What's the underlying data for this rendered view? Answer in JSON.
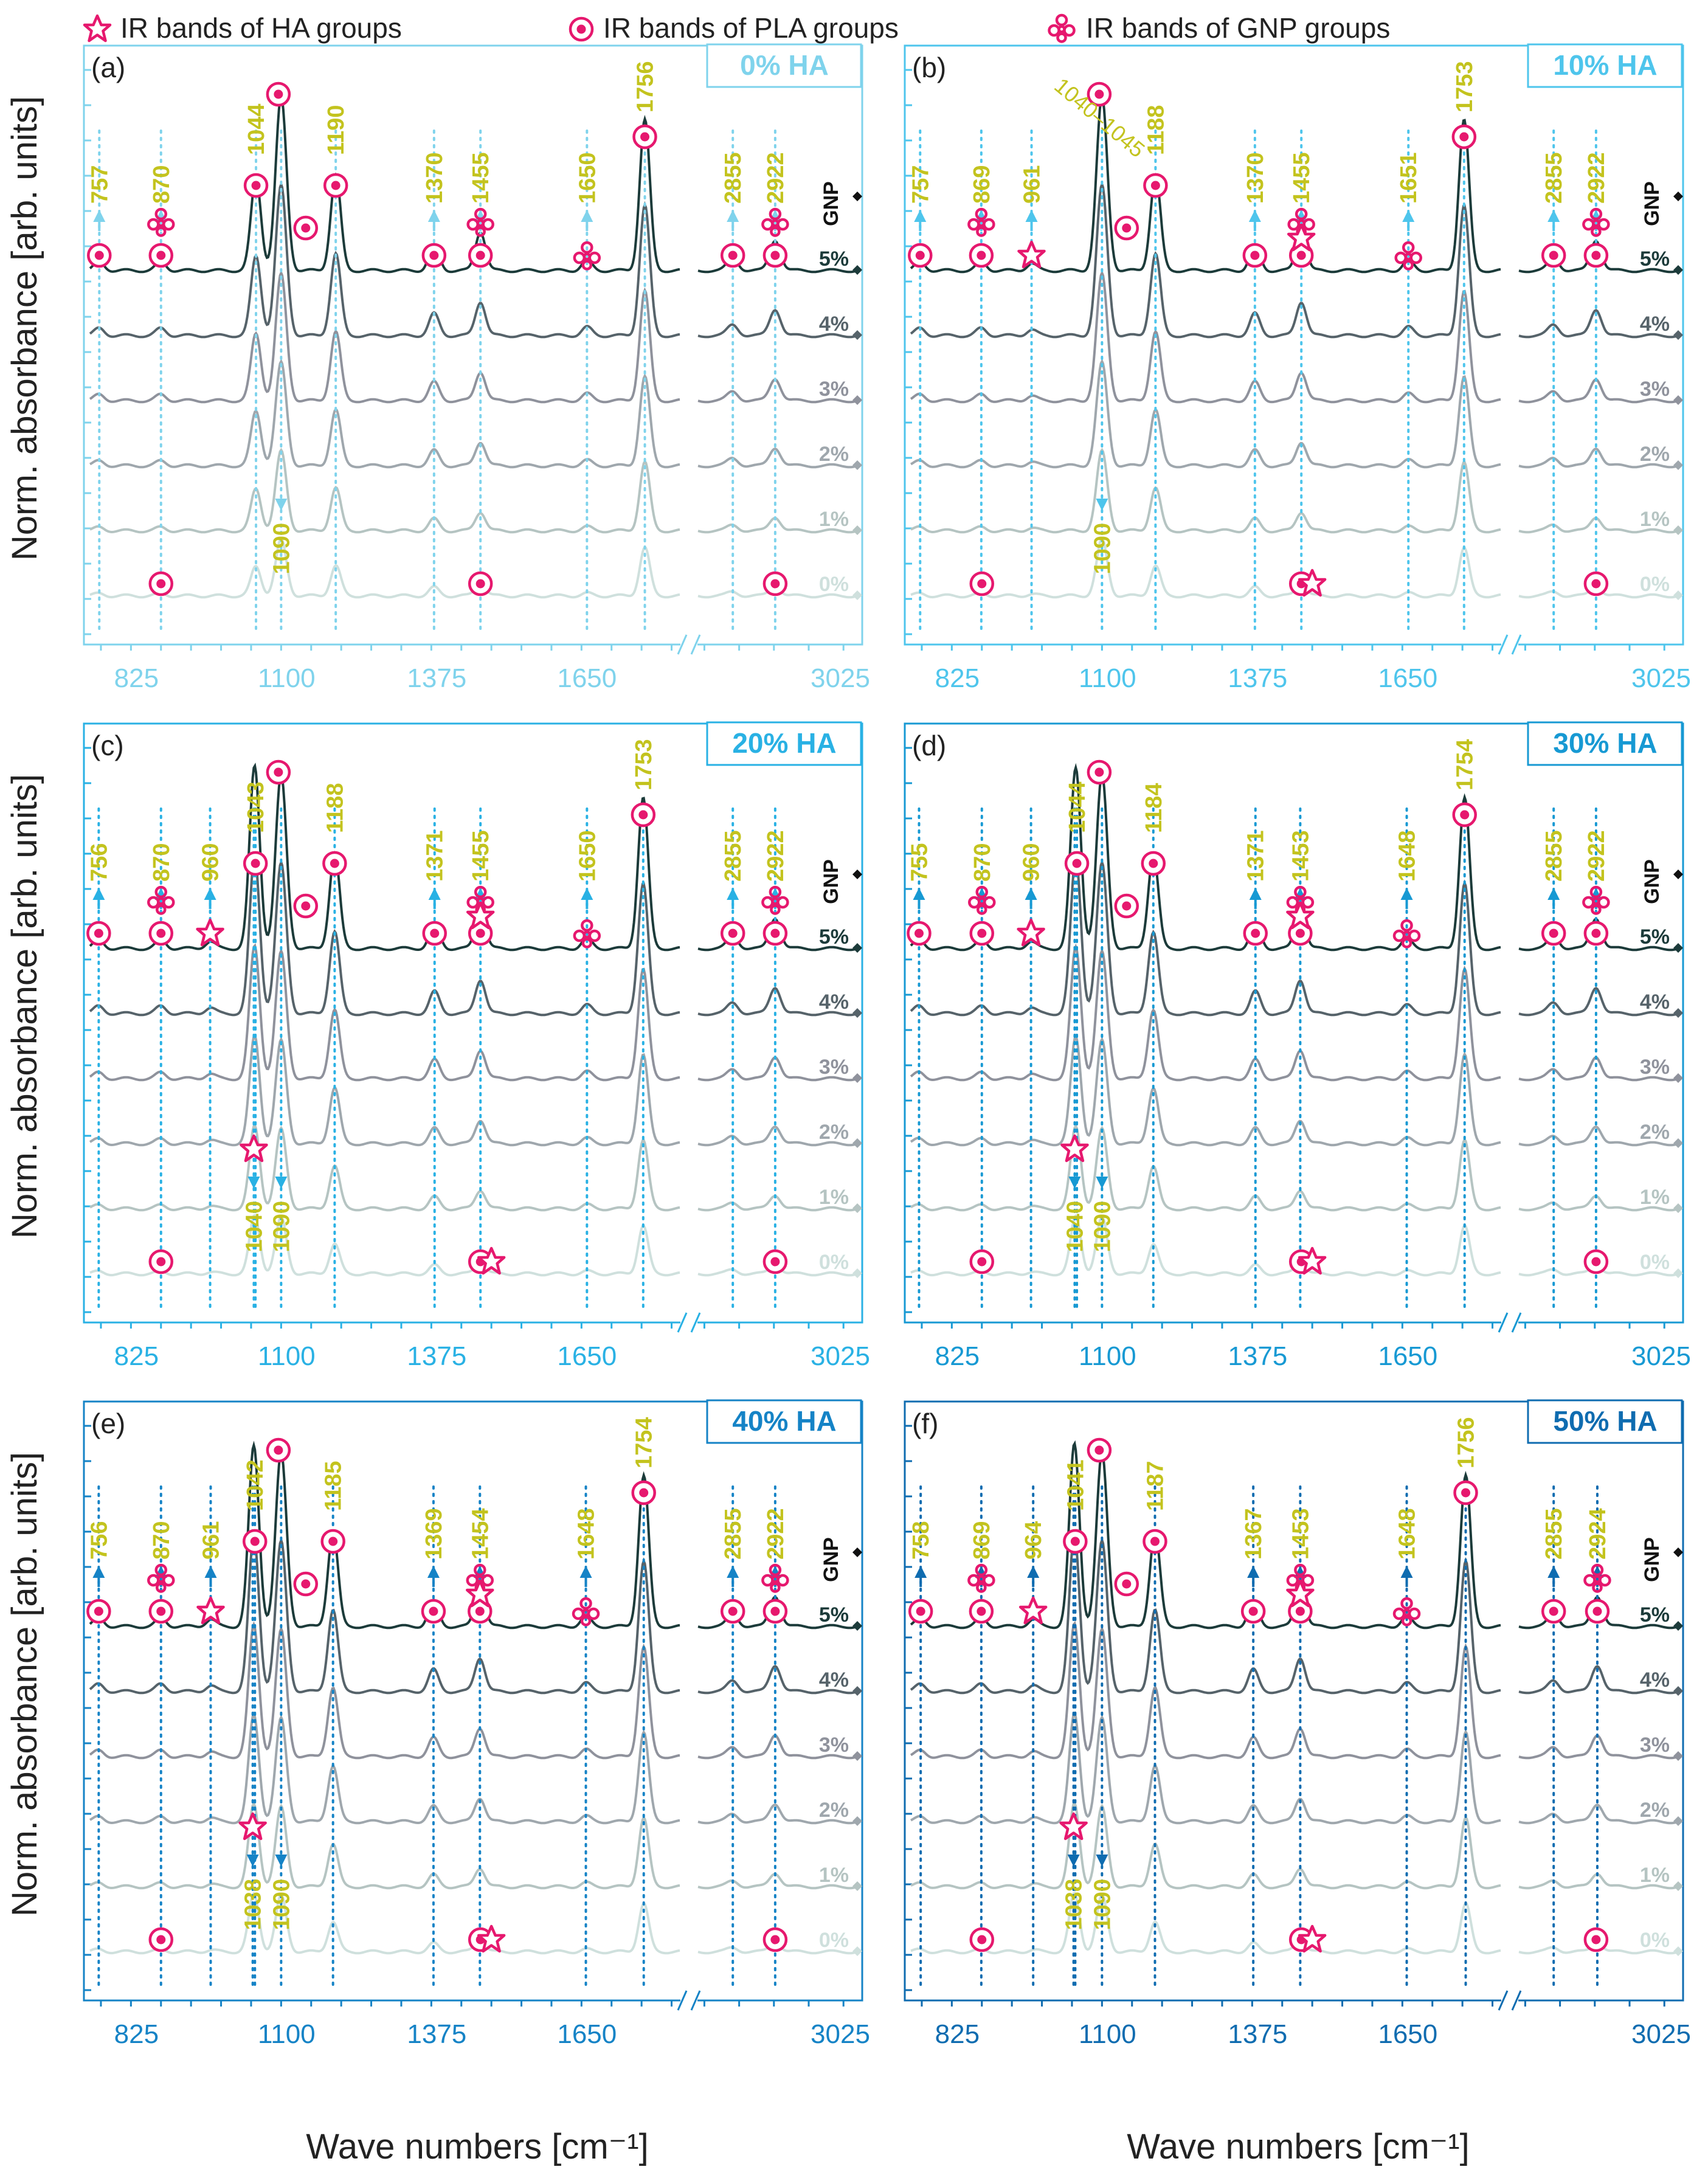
{
  "legend": {
    "ha_label": "IR bands of HA groups",
    "pla_label": "IR bands of PLA groups",
    "gnp_label": "IR bands of GNP groups"
  },
  "axes": {
    "ylabel": "Norm. absorbance [arb. units]",
    "xlabel": "Wave numbers [cm⁻¹]",
    "xticks_left": [
      "825",
      "1100",
      "1375",
      "1650"
    ],
    "xticks_right": [
      "3025"
    ],
    "xlim_left": [
      740,
      1820
    ],
    "xlim_right": [
      2800,
      3050
    ],
    "series_labels": [
      "0%",
      "1%",
      "2%",
      "3%",
      "4%",
      "5%"
    ],
    "gnp_label": "GNP"
  },
  "colors": {
    "marker": "#e6186e",
    "label": "#c3c31e",
    "series": [
      "#cfe0dd",
      "#b5c4c2",
      "#9fa7ad",
      "#8f929c",
      "#56636a",
      "#1c3b3a"
    ],
    "frames": [
      "#7fd3ec",
      "#4ec5ec",
      "#29b1e4",
      "#1799d3",
      "#1583c6",
      "#0f6cb0"
    ]
  },
  "chart_data": [
    {
      "type": "line",
      "panel": "(a)",
      "title": "0% HA",
      "peaks": [
        "757",
        "870",
        "1044",
        "1190",
        "1370",
        "1455",
        "1650",
        "1756",
        "2855",
        "2922",
        "1090"
      ],
      "peak_positions": [
        757,
        870,
        1044,
        1190,
        1370,
        1455,
        1650,
        1756,
        2855,
        2922,
        1090
      ],
      "extra_label": ""
    },
    {
      "type": "line",
      "panel": "(b)",
      "title": "10% HA",
      "peaks": [
        "757",
        "869",
        "961",
        "1188",
        "1370",
        "1455",
        "1651",
        "1753",
        "2855",
        "2922",
        "1090"
      ],
      "peak_positions": [
        757,
        869,
        961,
        1188,
        1370,
        1455,
        1651,
        1753,
        2855,
        2922,
        1090
      ],
      "extra_label": "1040–1045"
    },
    {
      "type": "line",
      "panel": "(c)",
      "title": "20% HA",
      "peaks": [
        "756",
        "870",
        "960",
        "1043",
        "1188",
        "1371",
        "1455",
        "1650",
        "1753",
        "2855",
        "2922",
        "1040",
        "1090"
      ],
      "peak_positions": [
        756,
        870,
        960,
        1043,
        1188,
        1371,
        1455,
        1650,
        1753,
        2855,
        2922,
        1040,
        1090
      ],
      "extra_label": ""
    },
    {
      "type": "line",
      "panel": "(d)",
      "title": "30% HA",
      "peaks": [
        "755",
        "870",
        "960",
        "1044",
        "1184",
        "1371",
        "1453",
        "1648",
        "1754",
        "2855",
        "2922",
        "1040",
        "1090"
      ],
      "peak_positions": [
        755,
        870,
        960,
        1044,
        1184,
        1371,
        1453,
        1648,
        1754,
        2855,
        2922,
        1040,
        1090
      ],
      "extra_label": ""
    },
    {
      "type": "line",
      "panel": "(e)",
      "title": "40% HA",
      "peaks": [
        "756",
        "870",
        "961",
        "1042",
        "1185",
        "1369",
        "1454",
        "1648",
        "1754",
        "2855",
        "2922",
        "1038",
        "1090"
      ],
      "peak_positions": [
        756,
        870,
        961,
        1042,
        1185,
        1369,
        1454,
        1648,
        1754,
        2855,
        2922,
        1038,
        1090
      ],
      "extra_label": ""
    },
    {
      "type": "line",
      "panel": "(f)",
      "title": "50% HA",
      "peaks": [
        "758",
        "869",
        "964",
        "1041",
        "1187",
        "1367",
        "1453",
        "1648",
        "1756",
        "2855",
        "2924",
        "1038",
        "1090"
      ],
      "peak_positions": [
        758,
        869,
        964,
        1041,
        1187,
        1367,
        1453,
        1648,
        1756,
        2855,
        2924,
        1038,
        1090
      ],
      "extra_label": ""
    }
  ]
}
